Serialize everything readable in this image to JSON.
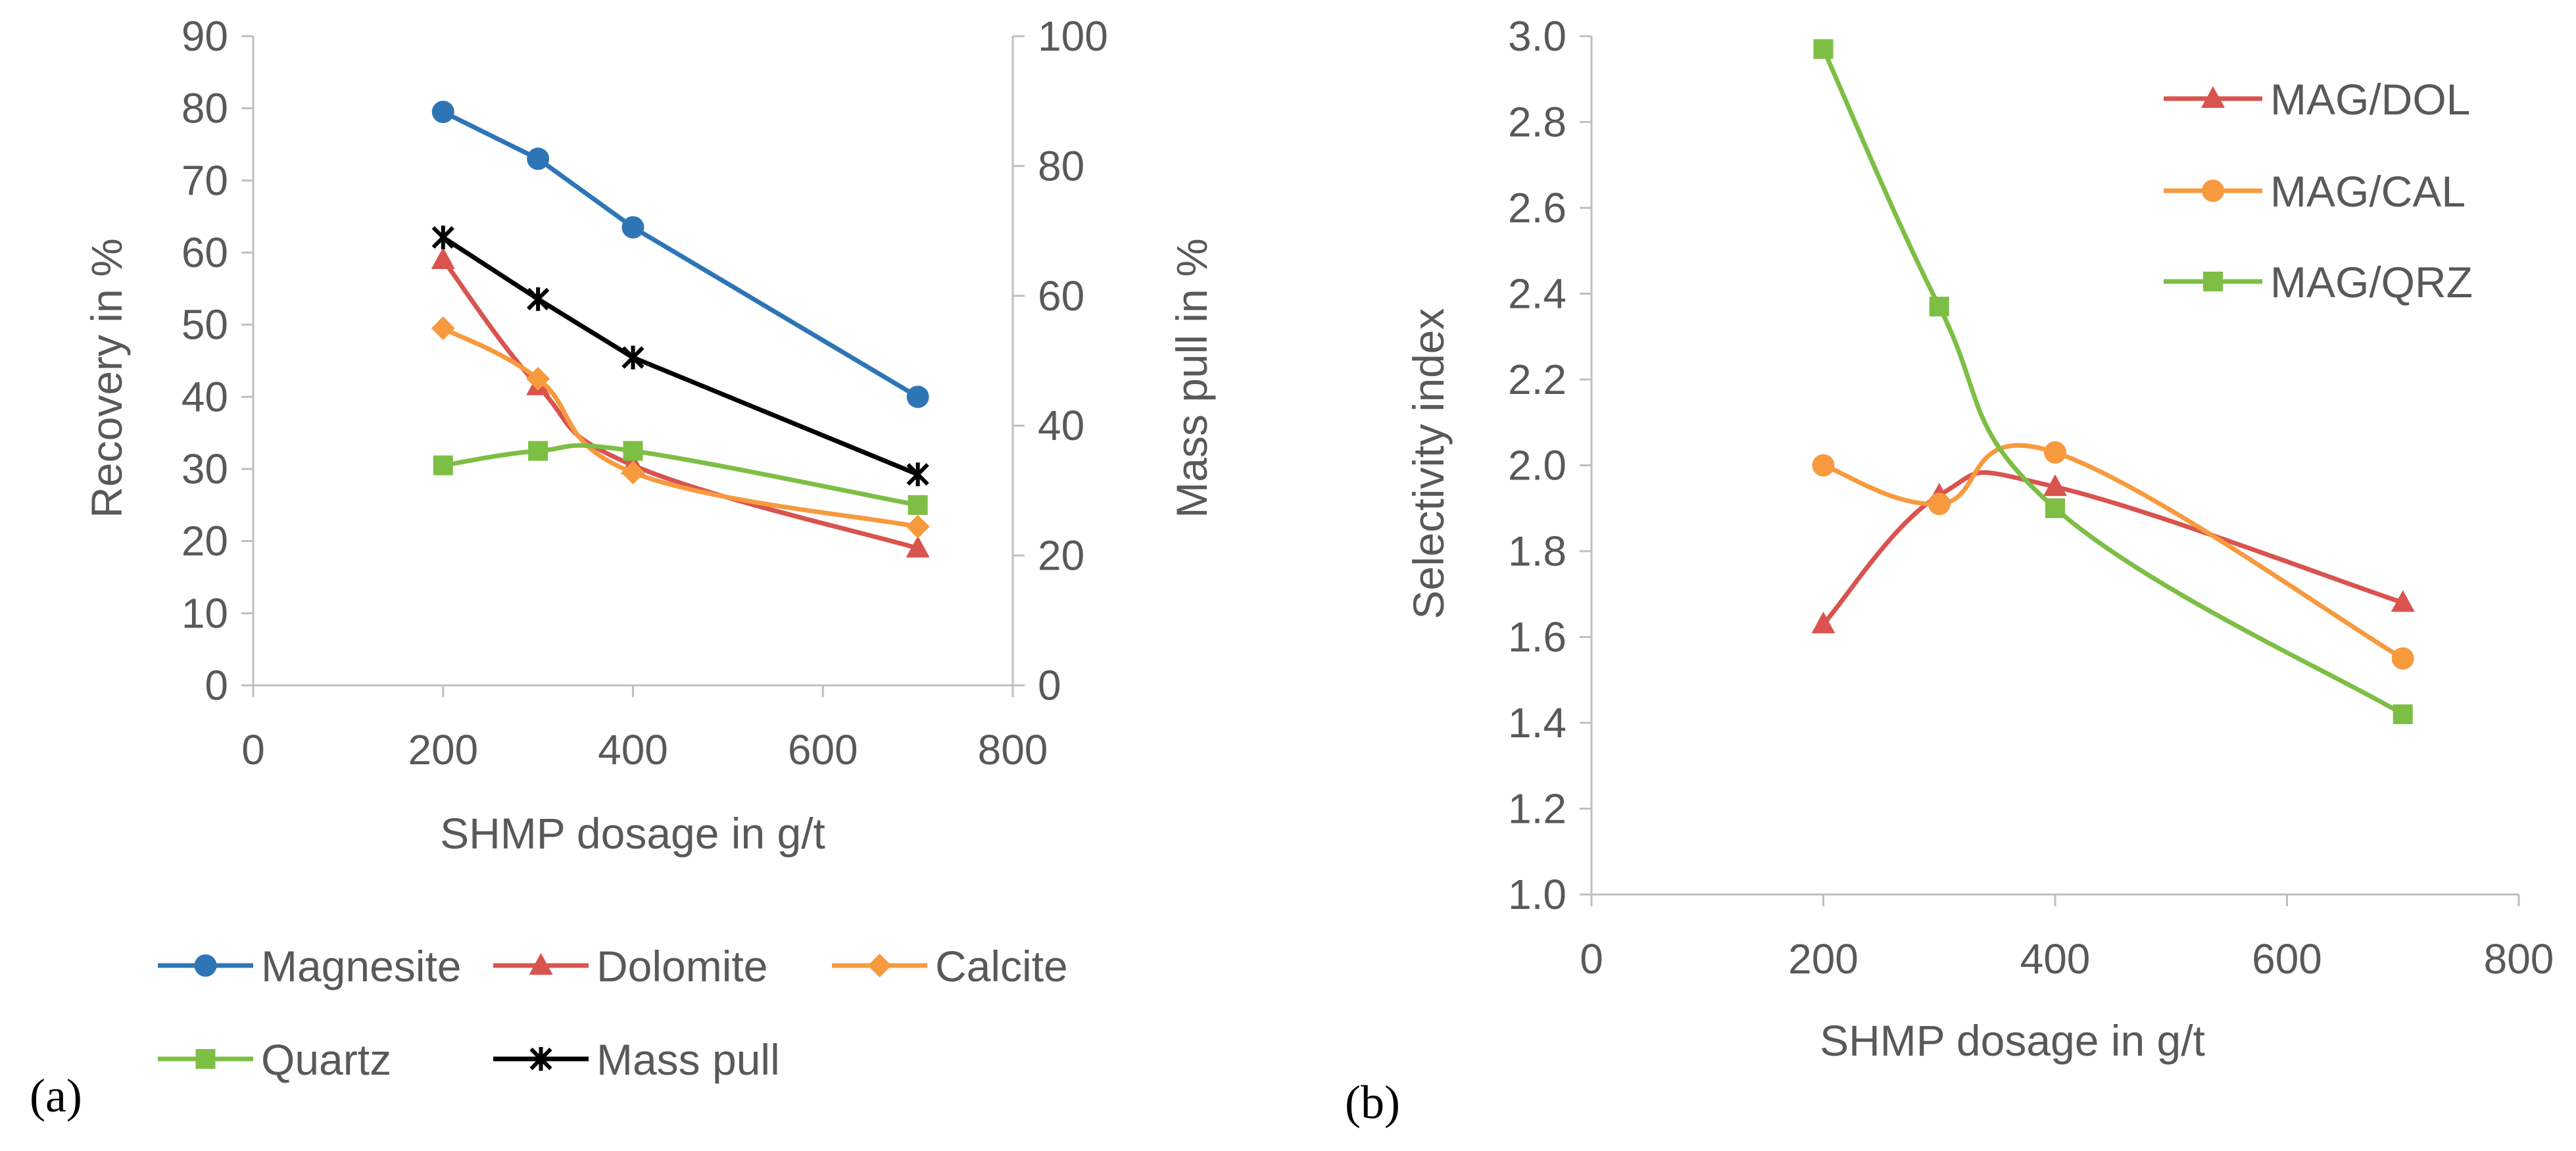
{
  "chart_data": [
    {
      "type": "line",
      "panel_label": "(a)",
      "xlabel": "SHMP dosage in g/t",
      "ylabel": "Recovery in %",
      "y2label": "Mass pull in %",
      "xlim": [
        0,
        800
      ],
      "ylim": [
        0,
        90
      ],
      "y2lim": [
        0,
        100
      ],
      "xticks": [
        0,
        200,
        400,
        600,
        800
      ],
      "yticks": [
        0,
        10,
        20,
        30,
        40,
        50,
        60,
        70,
        80,
        90
      ],
      "y2ticks": [
        0,
        20,
        40,
        60,
        80,
        100
      ],
      "legend_position": "bottom",
      "series": [
        {
          "name": "Magnesite",
          "color": "#2E75B6",
          "marker": "circle",
          "axis": "left",
          "smooth": false,
          "x": [
            200,
            300,
            400,
            700
          ],
          "values": [
            79.5,
            73,
            63.5,
            40
          ]
        },
        {
          "name": "Dolomite",
          "color": "#D9534F",
          "marker": "triangle",
          "axis": "left",
          "smooth": true,
          "x": [
            200,
            300,
            400,
            700
          ],
          "values": [
            59,
            41.5,
            30.5,
            19
          ]
        },
        {
          "name": "Calcite",
          "color": "#F79A3E",
          "marker": "diamond",
          "axis": "left",
          "smooth": true,
          "x": [
            200,
            300,
            400,
            700
          ],
          "values": [
            49.5,
            42.5,
            29.5,
            22
          ]
        },
        {
          "name": "Quartz",
          "color": "#7DBE45",
          "marker": "square",
          "axis": "left",
          "smooth": true,
          "x": [
            200,
            300,
            400,
            700
          ],
          "values": [
            30.5,
            32.5,
            32.5,
            25
          ]
        },
        {
          "name": "Mass pull",
          "color": "#000000",
          "marker": "star",
          "axis": "right",
          "smooth": false,
          "x": [
            200,
            300,
            400,
            700
          ],
          "values": [
            69,
            59.5,
            50.5,
            32.5
          ]
        }
      ]
    },
    {
      "type": "line",
      "panel_label": "(b)",
      "xlabel": "SHMP dosage in g/t",
      "ylabel": "Selectivity index",
      "xlim": [
        0,
        800
      ],
      "ylim": [
        1.0,
        3.0
      ],
      "xticks": [
        0,
        200,
        400,
        600,
        800
      ],
      "yticks": [
        "1.0",
        "1.2",
        "1.4",
        "1.6",
        "1.8",
        "2.0",
        "2.2",
        "2.4",
        "2.6",
        "2.8",
        "3.0"
      ],
      "legend_position": "top-right",
      "series": [
        {
          "name": "MAG/DOL",
          "color": "#D9534F",
          "marker": "triangle",
          "x": [
            200,
            300,
            400,
            700
          ],
          "values": [
            1.63,
            1.93,
            1.95,
            1.68
          ]
        },
        {
          "name": "MAG/CAL",
          "color": "#F79A3E",
          "marker": "circle",
          "x": [
            200,
            300,
            400,
            700
          ],
          "values": [
            2.0,
            1.91,
            2.03,
            1.55
          ]
        },
        {
          "name": "MAG/QRZ",
          "color": "#7DBE45",
          "marker": "square",
          "x": [
            200,
            300,
            400,
            700
          ],
          "values": [
            2.97,
            2.37,
            1.9,
            1.42
          ]
        }
      ]
    }
  ]
}
